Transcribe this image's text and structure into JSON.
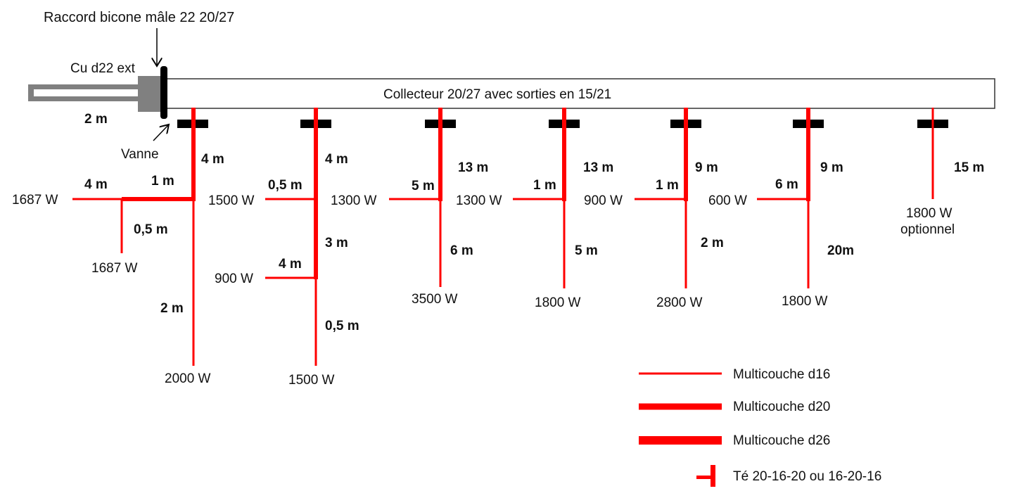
{
  "title": "Raccord bicone mâle 22 20/27",
  "pipe_label": "Cu d22 ext",
  "pipe_length": "2 m",
  "valve_label": "Vanne",
  "collector_label": "Collecteur 20/27 avec sorties en 15/21",
  "colors": {
    "pipe_red": "#ff0000",
    "valve_black": "#000000",
    "copper_gray": "#808080"
  },
  "branches": [
    {
      "labels": [
        "4 m",
        "1 m",
        "4 m",
        "1687 W",
        "0,5 m",
        "1687 W",
        "2 m",
        "2000 W"
      ]
    },
    {
      "labels": [
        "4 m",
        "0,5 m",
        "1500 W",
        "3 m",
        "4 m",
        "900 W",
        "0,5 m",
        "1500 W"
      ]
    },
    {
      "labels": [
        "13 m",
        "5 m",
        "1300 W",
        "6 m",
        "3500 W"
      ]
    },
    {
      "labels": [
        "13 m",
        "1 m",
        "1300 W",
        "5 m",
        "1800 W"
      ]
    },
    {
      "labels": [
        "9 m",
        "1 m",
        "900 W",
        "2 m",
        "2800 W"
      ]
    },
    {
      "labels": [
        "9 m",
        "6 m",
        "600 W",
        "20m",
        "1800 W"
      ]
    },
    {
      "labels": [
        "15 m",
        "1800 W",
        "optionnel"
      ]
    }
  ],
  "legend": [
    {
      "label": "Multicouche d16"
    },
    {
      "label": "Multicouche d20"
    },
    {
      "label": "Multicouche d26"
    },
    {
      "label": "Té 20-16-20 ou 16-20-16"
    }
  ]
}
